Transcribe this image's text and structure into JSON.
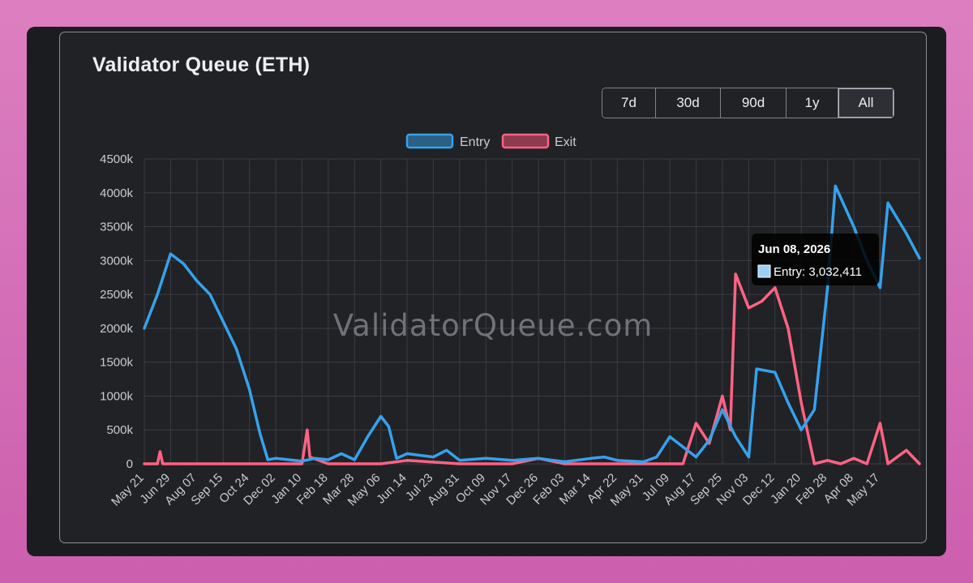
{
  "page": {
    "title": "Validator Queue (ETH)"
  },
  "range_buttons": [
    {
      "label": "7d",
      "active": false
    },
    {
      "label": "30d",
      "active": false
    },
    {
      "label": "90d",
      "active": false
    },
    {
      "label": "1y",
      "active": false
    },
    {
      "label": "All",
      "active": true
    }
  ],
  "watermark": "ValidatorQueue.com",
  "tooltip": {
    "date": "Jun 08, 2026",
    "text": "Entry: 3,032,411"
  },
  "colors": {
    "entry": "#36a2eb",
    "exit": "#ff6384",
    "grid": "#3a3c42",
    "tick_text": "#c9ccd2"
  },
  "chart_data": {
    "type": "line",
    "title": "",
    "legend": {
      "position": "top",
      "entries": [
        "Entry",
        "Exit"
      ]
    },
    "grid": true,
    "ylim": [
      0,
      4500000
    ],
    "y_ticks": [
      "0",
      "500k",
      "1000k",
      "1500k",
      "2000k",
      "2500k",
      "3000k",
      "3500k",
      "4000k",
      "4500k"
    ],
    "x_tick_labels": [
      "May 21",
      "Jun 29",
      "Aug 07",
      "Sep 15",
      "Oct 24",
      "Dec 02",
      "Jan 10",
      "Feb 18",
      "Mar 28",
      "May 06",
      "Jun 14",
      "Jul 23",
      "Aug 31",
      "Oct 09",
      "Nov 17",
      "Dec 26",
      "Feb 03",
      "Mar 14",
      "Apr 22",
      "May 31",
      "Jul 09",
      "Aug 17",
      "Sep 25",
      "Nov 03",
      "Dec 12",
      "Jan 20",
      "Feb 28",
      "Apr 08",
      "May 17"
    ],
    "series": [
      {
        "name": "Entry",
        "points": [
          [
            0,
            2000000
          ],
          [
            0.5,
            2500000
          ],
          [
            1,
            3100000
          ],
          [
            1.5,
            2950000
          ],
          [
            2,
            2700000
          ],
          [
            2.5,
            2500000
          ],
          [
            3,
            2100000
          ],
          [
            3.5,
            1700000
          ],
          [
            4,
            1100000
          ],
          [
            4.4,
            450000
          ],
          [
            4.7,
            60000
          ],
          [
            5,
            80000
          ],
          [
            6,
            40000
          ],
          [
            6.5,
            80000
          ],
          [
            7,
            60000
          ],
          [
            7.5,
            150000
          ],
          [
            8,
            60000
          ],
          [
            8.5,
            400000
          ],
          [
            9,
            700000
          ],
          [
            9.3,
            550000
          ],
          [
            9.6,
            80000
          ],
          [
            10,
            150000
          ],
          [
            11,
            100000
          ],
          [
            11.5,
            200000
          ],
          [
            12,
            50000
          ],
          [
            13,
            80000
          ],
          [
            14,
            50000
          ],
          [
            15,
            80000
          ],
          [
            16,
            30000
          ],
          [
            17,
            80000
          ],
          [
            17.5,
            100000
          ],
          [
            18,
            50000
          ],
          [
            19,
            30000
          ],
          [
            19.5,
            100000
          ],
          [
            20,
            400000
          ],
          [
            20.5,
            250000
          ],
          [
            21,
            100000
          ],
          [
            21.5,
            350000
          ],
          [
            22,
            800000
          ],
          [
            22.5,
            400000
          ],
          [
            23,
            100000
          ],
          [
            23.3,
            1400000
          ],
          [
            24,
            1350000
          ],
          [
            24.5,
            900000
          ],
          [
            25,
            500000
          ],
          [
            25.5,
            800000
          ],
          [
            26,
            2600000
          ],
          [
            26.3,
            4100000
          ],
          [
            27,
            3500000
          ],
          [
            27.5,
            3000000
          ],
          [
            28,
            2600000
          ],
          [
            28.3,
            3850000
          ],
          [
            29,
            3400000
          ],
          [
            29.5,
            3032411
          ]
        ]
      },
      {
        "name": "Exit",
        "points": [
          [
            0,
            0
          ],
          [
            0.5,
            0
          ],
          [
            0.6,
            180000
          ],
          [
            0.7,
            0
          ],
          [
            2,
            0
          ],
          [
            4,
            0
          ],
          [
            5,
            0
          ],
          [
            6,
            0
          ],
          [
            6.2,
            500000
          ],
          [
            6.3,
            100000
          ],
          [
            7,
            0
          ],
          [
            9,
            0
          ],
          [
            10,
            50000
          ],
          [
            12,
            0
          ],
          [
            14,
            0
          ],
          [
            15,
            80000
          ],
          [
            16,
            0
          ],
          [
            19,
            0
          ],
          [
            20,
            0
          ],
          [
            20.5,
            0
          ],
          [
            21,
            600000
          ],
          [
            21.5,
            300000
          ],
          [
            22,
            1000000
          ],
          [
            22.3,
            500000
          ],
          [
            22.5,
            2800000
          ],
          [
            23,
            2300000
          ],
          [
            23.5,
            2400000
          ],
          [
            24,
            2600000
          ],
          [
            24.5,
            2000000
          ],
          [
            25,
            900000
          ],
          [
            25.5,
            0
          ],
          [
            26,
            50000
          ],
          [
            26.5,
            0
          ],
          [
            27,
            80000
          ],
          [
            27.5,
            0
          ],
          [
            28,
            600000
          ],
          [
            28.3,
            0
          ],
          [
            29,
            200000
          ],
          [
            29.5,
            0
          ]
        ]
      }
    ]
  }
}
